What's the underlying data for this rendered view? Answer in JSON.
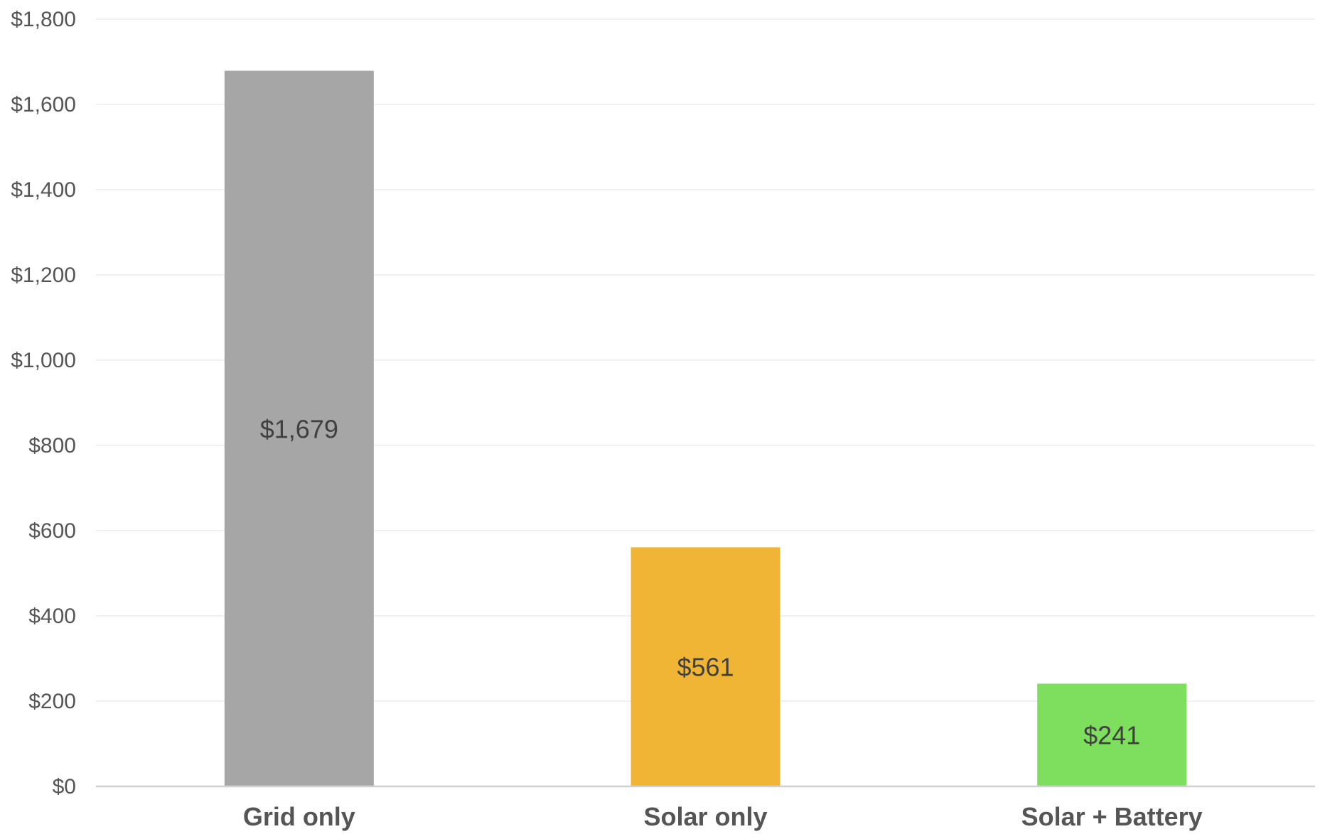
{
  "chart_data": {
    "type": "bar",
    "title": "",
    "xlabel": "",
    "ylabel": "",
    "categories": [
      "Grid only",
      "Solar only",
      "Solar + Battery"
    ],
    "values": [
      1679,
      561,
      241
    ],
    "data_labels": [
      "$1,679",
      "$561",
      "$241"
    ],
    "colors": [
      "#a6a6a6",
      "#f0b534",
      "#7ddf5d"
    ],
    "ylim": [
      0,
      1800
    ],
    "yticks": [
      0,
      200,
      400,
      600,
      800,
      1000,
      1200,
      1400,
      1600,
      1800
    ],
    "ytick_labels": [
      "$0",
      "$200",
      "$400",
      "$600",
      "$800",
      "$1,000",
      "$1,200",
      "$1,400",
      "$1,600",
      "$1,800"
    ],
    "grid": true,
    "legend": "none"
  }
}
